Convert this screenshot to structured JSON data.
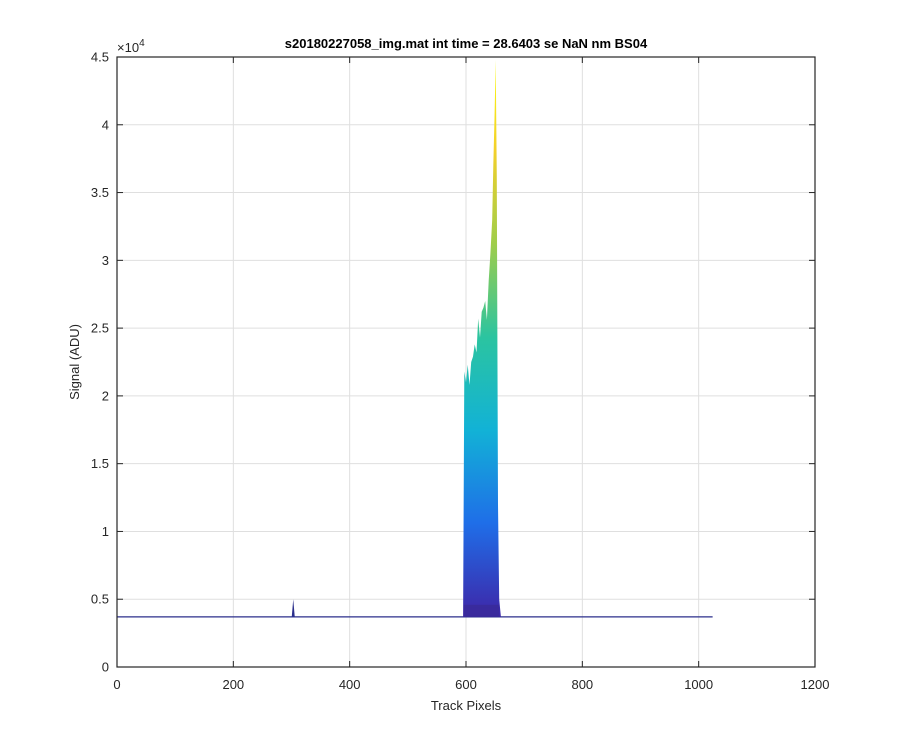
{
  "chart_data": {
    "type": "area",
    "title": "s20180227058_img.mat int time = 28.6403 se  NaN nm BS04",
    "xlabel": "Track Pixels",
    "ylabel": "Signal (ADU)",
    "exponent_base": "×10",
    "exponent_power": "4",
    "xlim": [
      0,
      1200
    ],
    "ylim": [
      0,
      45000
    ],
    "xticks": [
      0,
      200,
      400,
      600,
      800,
      1000,
      1200
    ],
    "xtick_labels": [
      "0",
      "200",
      "400",
      "600",
      "800",
      "1000",
      "1200"
    ],
    "yticks": [
      0,
      5000,
      10000,
      15000,
      20000,
      25000,
      30000,
      35000,
      40000,
      45000
    ],
    "ytick_labels": [
      "0",
      "0.5",
      "1",
      "1.5",
      "2",
      "2.5",
      "3",
      "3.5",
      "4",
      "4.5"
    ],
    "grid": true,
    "colormap": [
      "#3e26a8",
      "#1f6ee8",
      "#12b2d6",
      "#2bc4a0",
      "#9fcd4a",
      "#f3d02a",
      "#f9fb0e"
    ],
    "line_color": "#2b2f8c",
    "baseline": {
      "x": [
        0,
        1024
      ],
      "y": 3700
    },
    "spike": {
      "x": 303,
      "y": 5000
    },
    "peak_profile": {
      "x": [
        595,
        597,
        600,
        603,
        606,
        609,
        612,
        615,
        618,
        621,
        624,
        627,
        630,
        633,
        636,
        639,
        642,
        645,
        647,
        649,
        651,
        653,
        655,
        657,
        660
      ],
      "y": [
        3700,
        21800,
        21000,
        22300,
        20800,
        22500,
        22900,
        23800,
        23200,
        25700,
        24300,
        26200,
        26500,
        27000,
        25600,
        28500,
        30500,
        33000,
        37000,
        40500,
        44800,
        36000,
        12000,
        5000,
        3700
      ]
    }
  }
}
